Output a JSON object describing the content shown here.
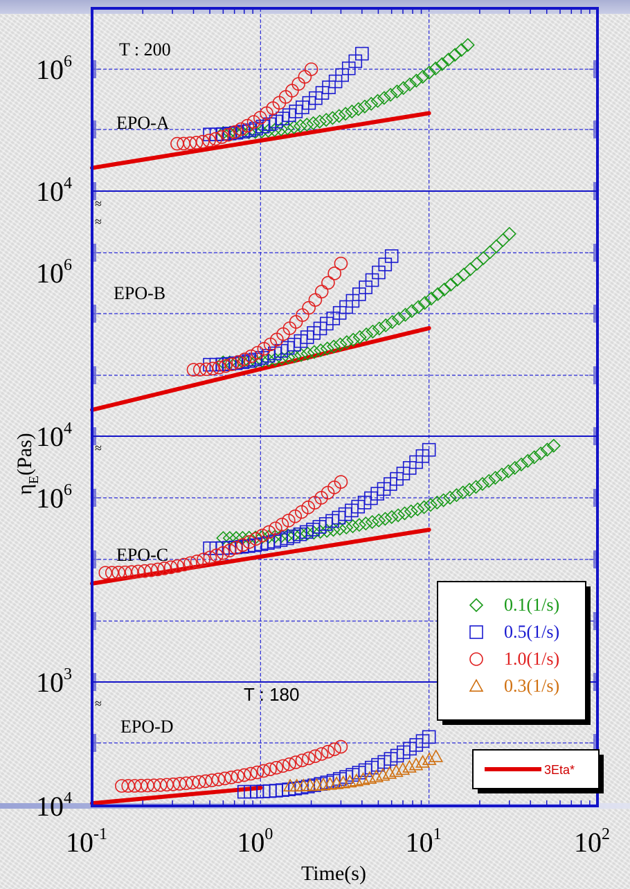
{
  "chart_data": {
    "type": "scatter",
    "xlabel": "Time(s)",
    "ylabel_main": "η",
    "ylabel_sub": "E",
    "ylabel_unit": "(Pas)",
    "xscale": "log",
    "xlim": [
      0.1,
      100
    ],
    "x_ticks": [
      {
        "base": "10",
        "exp": "-1"
      },
      {
        "base": "10",
        "exp": "0"
      },
      {
        "base": "10",
        "exp": "1"
      },
      {
        "base": "10",
        "exp": "2"
      }
    ],
    "grid": true,
    "annotations": {
      "t200": "T : 200",
      "t180": "T : 180"
    },
    "legend": {
      "placement": "lower-right",
      "entries": [
        {
          "label": "0.1(1/s)",
          "marker": "diamond",
          "color": "#1a9a1a"
        },
        {
          "label": "0.5(1/s)",
          "marker": "square",
          "color": "#1a1ad0"
        },
        {
          "label": "1.0(1/s)",
          "marker": "circle",
          "color": "#e02020"
        },
        {
          "label": "0.3(1/s)",
          "marker": "triangle",
          "color": "#d07010"
        }
      ],
      "line_entry": {
        "label": "3Eta*",
        "color": "#e00000"
      }
    },
    "panels": [
      {
        "label": "EPO-A",
        "y_ticks": [
          {
            "base": "10",
            "exp": "6",
            "value": 1000000
          },
          {
            "base": "10",
            "exp": "4",
            "value": 10000
          }
        ],
        "ylim": [
          10000,
          10000000
        ],
        "series": [
          {
            "rate": "0.1(1/s)",
            "marker": "diamond",
            "x_range": [
              0.6,
              17
            ],
            "y_start": 90000,
            "y_end": 2500000
          },
          {
            "rate": "0.5(1/s)",
            "marker": "square",
            "x_range": [
              0.5,
              4
            ],
            "y_start": 85000,
            "y_end": 1800000
          },
          {
            "rate": "1.0(1/s)",
            "marker": "circle",
            "x_range": [
              0.32,
              2
            ],
            "y_start": 60000,
            "y_end": 1000000
          },
          {
            "line": "3Eta*",
            "x_range": [
              0.1,
              10
            ],
            "y_start": 24000,
            "y_end": 190000
          }
        ]
      },
      {
        "label": "EPO-B",
        "y_ticks": [
          {
            "base": "10",
            "exp": "6",
            "value": 1000000
          },
          {
            "base": "10",
            "exp": "4",
            "value": 10000
          }
        ],
        "ylim": [
          10000,
          10000000
        ],
        "series": [
          {
            "rate": "0.1(1/s)",
            "marker": "diamond",
            "x_range": [
              0.6,
              30
            ],
            "y_start": 80000,
            "y_end": 3000000
          },
          {
            "rate": "0.5(1/s)",
            "marker": "square",
            "x_range": [
              0.5,
              6
            ],
            "y_start": 75000,
            "y_end": 1600000
          },
          {
            "rate": "1.0(1/s)",
            "marker": "circle",
            "x_range": [
              0.4,
              3
            ],
            "y_start": 65000,
            "y_end": 1300000
          },
          {
            "line": "3Eta*",
            "x_range": [
              0.1,
              10
            ],
            "y_start": 21000,
            "y_end": 210000
          }
        ]
      },
      {
        "label": "EPO-C",
        "y_ticks": [
          {
            "base": "10",
            "exp": "6",
            "value": 1000000
          },
          {
            "base": "10",
            "exp": "3",
            "value": 1000
          }
        ],
        "ylim": [
          1000,
          10000000
        ],
        "series": [
          {
            "rate": "0.1(1/s)",
            "marker": "diamond",
            "x_range": [
              0.6,
              55
            ],
            "y_start": 220000,
            "y_end": 7000000
          },
          {
            "rate": "0.5(1/s)",
            "marker": "square",
            "x_range": [
              0.5,
              10
            ],
            "y_start": 150000,
            "y_end": 6000000
          },
          {
            "rate": "1.0(1/s)",
            "marker": "circle",
            "x_range": [
              0.12,
              3
            ],
            "y_start": 60000,
            "y_end": 1800000
          },
          {
            "line": "3Eta*",
            "x_range": [
              0.1,
              10
            ],
            "y_start": 40000,
            "y_end": 300000
          }
        ]
      },
      {
        "label": "EPO-D",
        "y_ticks": [
          {
            "base": "10",
            "exp": "4",
            "value": 10000
          }
        ],
        "ylim": [
          10000,
          100000
        ],
        "series": [
          {
            "rate": "0.5(1/s)",
            "marker": "square",
            "x_range": [
              0.8,
              10
            ],
            "y_start": 13000,
            "y_end": 36000
          },
          {
            "rate": "0.3(1/s)",
            "marker": "triangle",
            "x_range": [
              1.5,
              11
            ],
            "y_start": 14500,
            "y_end": 25000
          },
          {
            "rate": "1.0(1/s)",
            "marker": "circle",
            "x_range": [
              0.15,
              3
            ],
            "y_start": 14500,
            "y_end": 30000
          },
          {
            "line": "3Eta*",
            "x_range": [
              0.1,
              1
            ],
            "y_start": 10500,
            "y_end": 14000
          }
        ]
      }
    ]
  }
}
